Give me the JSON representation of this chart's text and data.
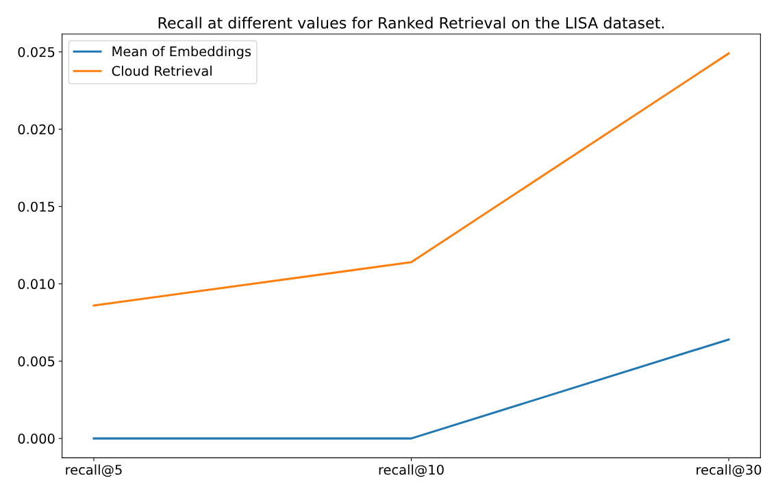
{
  "chart_data": {
    "type": "line",
    "title": "Recall at different values for Ranked Retrieval on the LISA dataset.",
    "categories": [
      "recall@5",
      "recall@10",
      "recall@30"
    ],
    "series": [
      {
        "name": "Mean of Embeddings",
        "color": "#1f77b4",
        "values": [
          0.0,
          0.0,
          0.0064
        ]
      },
      {
        "name": "Cloud Retrieval",
        "color": "#ff7f0e",
        "values": [
          0.0086,
          0.0114,
          0.0249
        ]
      }
    ],
    "ylim": [
      -0.00125,
      0.02615
    ],
    "yticks": [
      {
        "value": 0,
        "label": "0.000"
      },
      {
        "value": 0.005,
        "label": "0.005"
      },
      {
        "value": 0.01,
        "label": "0.010"
      },
      {
        "value": 0.015,
        "label": "0.015"
      },
      {
        "value": 0.02,
        "label": "0.020"
      },
      {
        "value": 0.025,
        "label": "0.025"
      }
    ],
    "legend": "top left",
    "grid": false,
    "marker": "none",
    "line_style": "solid"
  }
}
